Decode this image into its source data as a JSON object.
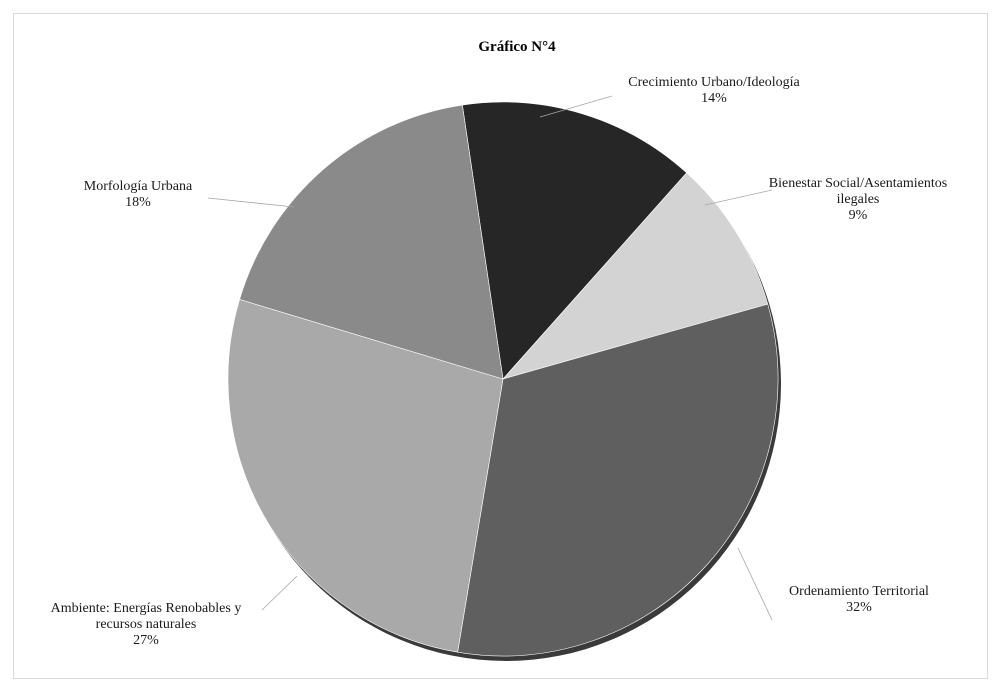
{
  "chart_data": {
    "type": "pie",
    "title": "Gráfico N°4",
    "slices": [
      {
        "label": "Crecimiento Urbano/Ideología",
        "label_lines": [
          "Crecimiento Urbano/Ideología"
        ],
        "percent_label": "14%",
        "value": 14,
        "color": "#262626"
      },
      {
        "label": "Bienestar Social/Asentamientos ilegales",
        "label_lines": [
          "Bienestar Social/Asentamientos",
          "ilegales"
        ],
        "percent_label": "9%",
        "value": 9,
        "color": "#d3d3d3"
      },
      {
        "label": "Ordenamiento Territorial",
        "label_lines": [
          "Ordenamiento Territorial"
        ],
        "percent_label": "32%",
        "value": 32,
        "color": "#5f5f5f"
      },
      {
        "label": "Ambiente: Energías Renobables y recursos naturales",
        "label_lines": [
          "Ambiente: Energías Renobables y",
          "recursos naturales"
        ],
        "percent_label": "27%",
        "value": 27,
        "color": "#a9a9a9"
      },
      {
        "label": "Morfología Urbana",
        "label_lines": [
          "Morfología Urbana"
        ],
        "percent_label": "18%",
        "value": 18,
        "color": "#8a8a8a"
      }
    ]
  }
}
